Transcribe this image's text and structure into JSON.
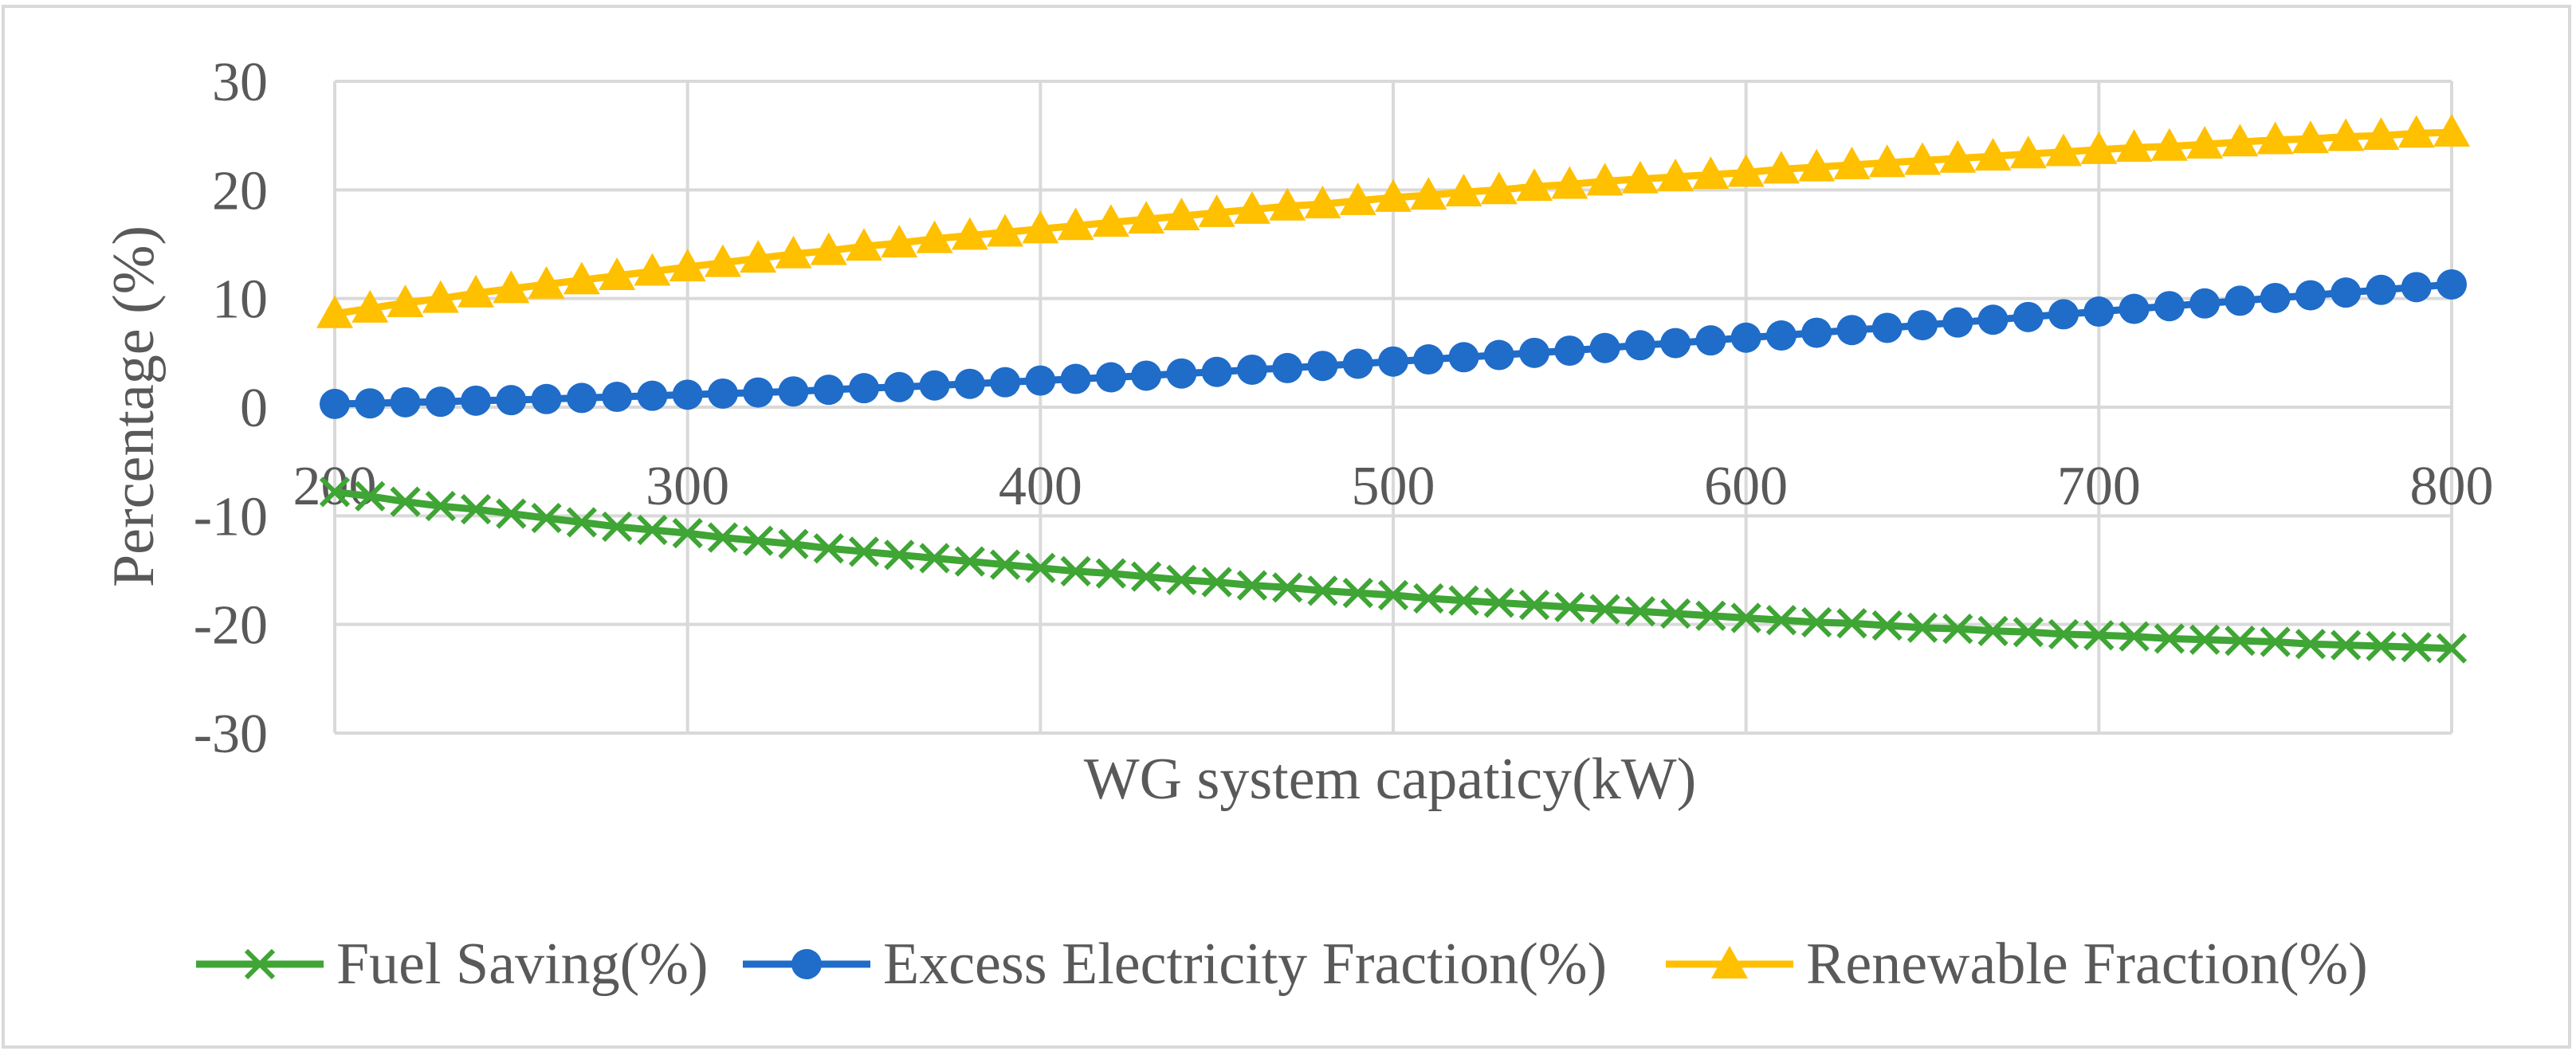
{
  "chart_data": {
    "type": "line",
    "title": "",
    "xlabel": "WG system capaticy(kW)",
    "ylabel": "Percentage (%)",
    "xlim": [
      200,
      800
    ],
    "ylim": [
      -30,
      30
    ],
    "x_ticks": [
      200,
      300,
      400,
      500,
      600,
      700,
      800
    ],
    "y_ticks": [
      30,
      20,
      10,
      0,
      -10,
      -20,
      -30
    ],
    "grid": true,
    "legend_position": "bottom",
    "x": [
      200,
      210,
      220,
      230,
      240,
      250,
      260,
      270,
      280,
      290,
      300,
      310,
      320,
      330,
      340,
      350,
      360,
      370,
      380,
      390,
      400,
      410,
      420,
      430,
      440,
      450,
      460,
      470,
      480,
      490,
      500,
      510,
      520,
      530,
      540,
      550,
      560,
      570,
      580,
      590,
      600,
      610,
      620,
      630,
      640,
      650,
      660,
      670,
      680,
      690,
      700,
      710,
      720,
      730,
      740,
      750,
      760,
      770,
      780,
      790,
      800
    ],
    "series": [
      {
        "name": "Fuel Saving(%)",
        "color": "#3fa535",
        "marker": "x",
        "values": [
          -7.8,
          -8.2,
          -8.7,
          -9.1,
          -9.4,
          -9.8,
          -10.2,
          -10.6,
          -11.0,
          -11.3,
          -11.6,
          -12.0,
          -12.3,
          -12.6,
          -13.0,
          -13.3,
          -13.6,
          -13.9,
          -14.2,
          -14.5,
          -14.8,
          -15.1,
          -15.3,
          -15.6,
          -15.9,
          -16.1,
          -16.4,
          -16.6,
          -16.9,
          -17.1,
          -17.3,
          -17.6,
          -17.8,
          -18.0,
          -18.2,
          -18.4,
          -18.6,
          -18.8,
          -19.0,
          -19.2,
          -19.4,
          -19.6,
          -19.8,
          -19.9,
          -20.1,
          -20.3,
          -20.4,
          -20.6,
          -20.7,
          -20.9,
          -21.0,
          -21.1,
          -21.3,
          -21.4,
          -21.5,
          -21.6,
          -21.8,
          -21.9,
          -22.0,
          -22.1,
          -22.2
        ]
      },
      {
        "name": "Excess Electricity Fraction(%)",
        "color": "#1f6cc9",
        "marker": "circle",
        "values": [
          0.3,
          0.35,
          0.45,
          0.5,
          0.6,
          0.65,
          0.75,
          0.85,
          0.95,
          1.05,
          1.15,
          1.25,
          1.35,
          1.45,
          1.6,
          1.75,
          1.85,
          2.0,
          2.15,
          2.3,
          2.45,
          2.6,
          2.75,
          2.9,
          3.1,
          3.25,
          3.45,
          3.6,
          3.8,
          4.0,
          4.2,
          4.4,
          4.6,
          4.8,
          5.0,
          5.2,
          5.45,
          5.7,
          5.9,
          6.15,
          6.4,
          6.6,
          6.85,
          7.1,
          7.3,
          7.55,
          7.8,
          8.05,
          8.3,
          8.55,
          8.8,
          9.05,
          9.3,
          9.55,
          9.8,
          10.05,
          10.3,
          10.55,
          10.8,
          11.05,
          11.3
        ]
      },
      {
        "name": "Renewable Fraction(%)",
        "color": "#ffc000",
        "marker": "triangle",
        "values": [
          8.6,
          9.1,
          9.6,
          10.0,
          10.5,
          10.9,
          11.3,
          11.7,
          12.1,
          12.5,
          12.9,
          13.3,
          13.7,
          14.1,
          14.4,
          14.8,
          15.1,
          15.5,
          15.8,
          16.1,
          16.4,
          16.7,
          17.0,
          17.3,
          17.6,
          17.9,
          18.2,
          18.5,
          18.7,
          19.0,
          19.3,
          19.5,
          19.8,
          20.0,
          20.3,
          20.5,
          20.8,
          21.0,
          21.2,
          21.4,
          21.6,
          21.9,
          22.1,
          22.3,
          22.5,
          22.7,
          22.9,
          23.1,
          23.3,
          23.5,
          23.7,
          23.9,
          24.0,
          24.2,
          24.4,
          24.6,
          24.7,
          24.9,
          25.0,
          25.2,
          25.3
        ]
      }
    ]
  }
}
